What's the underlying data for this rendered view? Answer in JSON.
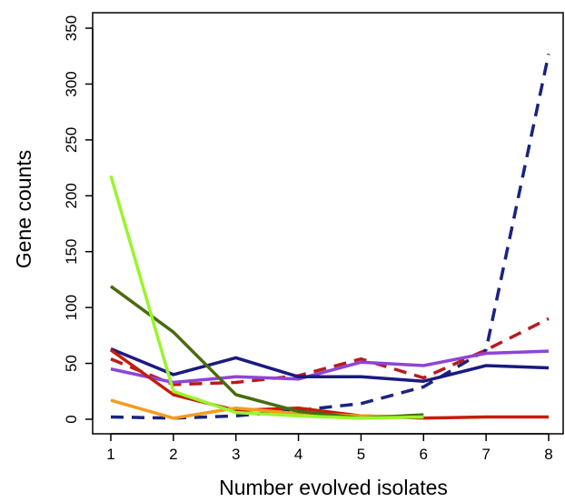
{
  "chart_data": {
    "type": "line",
    "title": "",
    "xlabel": "Number evolved isolates",
    "ylabel": "Gene counts",
    "xlim": [
      1,
      8
    ],
    "ylim": [
      0,
      350
    ],
    "xticks": [
      "1",
      "2",
      "3",
      "4",
      "5",
      "6",
      "7",
      "8"
    ],
    "yticks": [
      "0",
      "50",
      "100",
      "150",
      "200",
      "250",
      "300",
      "350"
    ],
    "grid": false,
    "legend": "none",
    "series": [
      {
        "x": [
          1,
          2,
          3,
          4,
          5,
          6,
          7,
          8
        ],
        "values": [
          2,
          1,
          3,
          8,
          14,
          29,
          62,
          327
        ],
        "color": "#1a237e",
        "dash": "dashed"
      },
      {
        "x": [
          1,
          2,
          3,
          4,
          5,
          6,
          7,
          8
        ],
        "values": [
          54,
          31,
          33,
          39,
          54,
          37,
          62,
          90
        ],
        "color": "#b71c1c",
        "dash": "dashed"
      },
      {
        "x": [
          1,
          2,
          3,
          4,
          5,
          6,
          7,
          8
        ],
        "values": [
          45,
          33,
          38,
          36,
          51,
          48,
          59,
          61
        ],
        "color": "#8e44d8",
        "dash": "solid"
      },
      {
        "x": [
          1,
          2,
          3,
          4,
          5,
          6,
          7,
          8
        ],
        "values": [
          63,
          40,
          55,
          38,
          38,
          34,
          48,
          46
        ],
        "color": "#1a1a80",
        "dash": "solid"
      },
      {
        "x": [
          1,
          2,
          3,
          4,
          5,
          6,
          7,
          8
        ],
        "values": [
          62,
          22,
          8,
          10,
          3,
          1,
          2,
          2
        ],
        "color": "#c41e0a",
        "dash": "solid"
      },
      {
        "x": [
          1,
          2,
          3,
          4,
          5,
          6
        ],
        "values": [
          17,
          1,
          10,
          5,
          3,
          2
        ],
        "color": "#f39c1f",
        "dash": "solid"
      },
      {
        "x": [
          1,
          2,
          3,
          4,
          5,
          6
        ],
        "values": [
          119,
          78,
          22,
          7,
          1,
          4
        ],
        "color": "#4a6b10",
        "dash": "solid"
      },
      {
        "x": [
          1,
          2,
          3,
          4,
          5,
          6
        ],
        "values": [
          218,
          25,
          6,
          3,
          1,
          2
        ],
        "color": "#99f52c",
        "dash": "solid"
      }
    ]
  }
}
